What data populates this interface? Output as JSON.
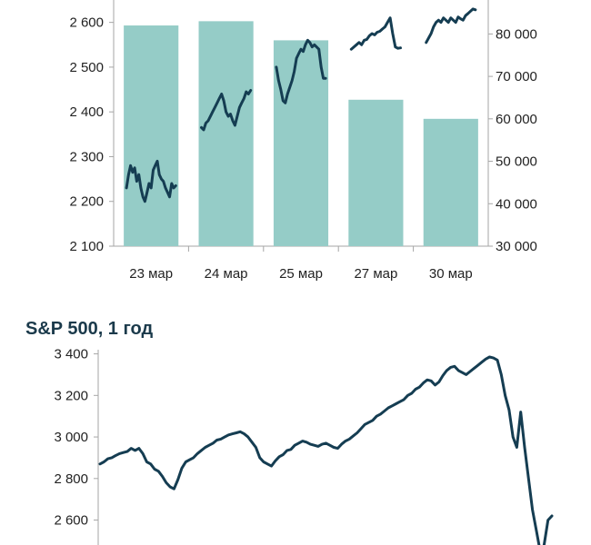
{
  "colors": {
    "bar": "#95ccc7",
    "line": "#153d52",
    "axis": "#a6a6a6"
  },
  "chart_data": [
    {
      "type": "bar+line",
      "title": "",
      "categories": [
        "23 мар",
        "24 мар",
        "25 мар",
        "27 мар",
        "30 мар"
      ],
      "y_left": {
        "ylim": [
          2100,
          2650
        ],
        "ticks": [
          2100,
          2200,
          2300,
          2400,
          2500,
          2600
        ],
        "tick_labels": [
          "2 100",
          "2 200",
          "2 300",
          "2 400",
          "2 500",
          "2 600"
        ]
      },
      "y_right": {
        "ylim": [
          30000,
          88000
        ],
        "ticks": [
          30000,
          40000,
          50000,
          60000,
          70000,
          80000
        ],
        "tick_labels": [
          "30 000",
          "40 000",
          "50 000",
          "60 000",
          "70 000",
          "80 000"
        ]
      },
      "bars": {
        "axis": "right",
        "values": [
          82000,
          83000,
          78500,
          64500,
          60000
        ]
      },
      "line": {
        "axis": "left",
        "segments": [
          [
            2230,
            2260,
            2280,
            2265,
            2275,
            2245,
            2260,
            2230,
            2210,
            2200,
            2220,
            2240,
            2230,
            2270,
            2280,
            2290,
            2260,
            2250,
            2245,
            2230,
            2220,
            2210,
            2240,
            2230,
            2235
          ],
          [
            2365,
            2360,
            2375,
            2380,
            2390,
            2400,
            2410,
            2420,
            2430,
            2440,
            2425,
            2400,
            2390,
            2395,
            2380,
            2370,
            2390,
            2410,
            2420,
            2430,
            2445,
            2440,
            2448
          ],
          [
            2500,
            2470,
            2450,
            2425,
            2420,
            2440,
            2455,
            2470,
            2490,
            2520,
            2530,
            2540,
            2535,
            2550,
            2560,
            2555,
            2545,
            2550,
            2545,
            2540,
            2500,
            2475,
            2475
          ],
          [
            2540,
            2545,
            2550,
            2555,
            2550,
            2560,
            2562,
            2570,
            2575,
            2572,
            2578,
            2580,
            2585,
            2590,
            2600,
            2610,
            2575,
            2545,
            2542,
            2543
          ],
          [
            2555,
            2565,
            2575,
            2590,
            2600,
            2605,
            2600,
            2610,
            2605,
            2600,
            2610,
            2605,
            2600,
            2612,
            2608,
            2605,
            2615,
            2620,
            2625,
            2630,
            2628
          ]
        ]
      }
    },
    {
      "type": "line",
      "title": "S&P 500, 1 год",
      "ylim": [
        2480,
        3420
      ],
      "yticks": [
        2600,
        2800,
        3000,
        3200,
        3400
      ],
      "ytick_labels": [
        "2 600",
        "2 800",
        "3 000",
        "3 200",
        "3 400"
      ],
      "series": [
        {
          "values": [
            2870,
            2880,
            2895,
            2900,
            2910,
            2920,
            2925,
            2930,
            2945,
            2935,
            2945,
            2920,
            2880,
            2870,
            2845,
            2835,
            2810,
            2780,
            2760,
            2750,
            2795,
            2850,
            2880,
            2890,
            2900,
            2920,
            2935,
            2950,
            2960,
            2970,
            2985,
            2990,
            3000,
            3010,
            3015,
            3020,
            3025,
            3015,
            3000,
            2975,
            2950,
            2900,
            2880,
            2870,
            2860,
            2885,
            2905,
            2915,
            2935,
            2940,
            2960,
            2970,
            2980,
            2975,
            2965,
            2960,
            2955,
            2965,
            2970,
            2960,
            2950,
            2945,
            2965,
            2980,
            2990,
            3005,
            3020,
            3040,
            3060,
            3070,
            3080,
            3100,
            3110,
            3125,
            3140,
            3150,
            3160,
            3170,
            3180,
            3200,
            3210,
            3230,
            3240,
            3260,
            3275,
            3270,
            3250,
            3265,
            3295,
            3320,
            3335,
            3340,
            3320,
            3310,
            3300,
            3315,
            3330,
            3345,
            3360,
            3375,
            3385,
            3380,
            3370,
            3300,
            3200,
            3130,
            3000,
            2950,
            3120,
            2950,
            2800,
            2650,
            2550,
            2450,
            2480,
            2600,
            2620
          ]
        }
      ]
    }
  ]
}
